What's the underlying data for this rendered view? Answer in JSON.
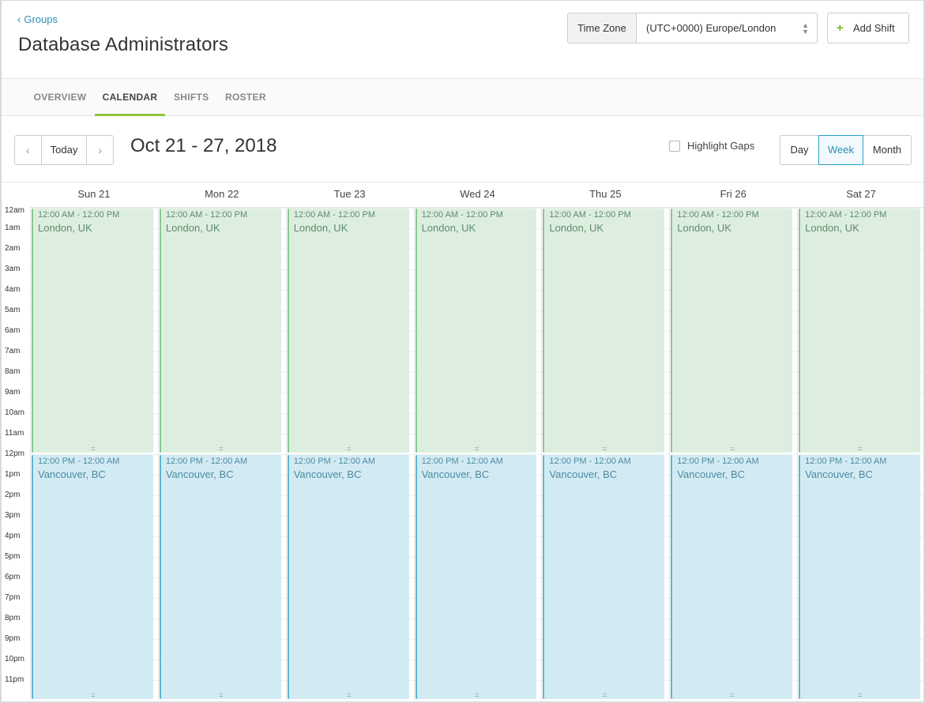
{
  "header": {
    "back_label": "Groups",
    "title": "Database Administrators",
    "timezone_label": "Time Zone",
    "timezone_value": "(UTC+0000) Europe/London",
    "add_shift_label": "Add Shift"
  },
  "tabs": [
    {
      "label": "OVERVIEW",
      "active": false
    },
    {
      "label": "CALENDAR",
      "active": true
    },
    {
      "label": "SHIFTS",
      "active": false
    },
    {
      "label": "ROSTER",
      "active": false
    }
  ],
  "toolbar": {
    "prev_glyph": "‹",
    "today_label": "Today",
    "next_glyph": "›",
    "date_range": "Oct 21 - 27, 2018",
    "highlight_gaps_label": "Highlight Gaps",
    "highlight_gaps_checked": false,
    "views": [
      "Day",
      "Week",
      "Month"
    ],
    "active_view": "Week"
  },
  "calendar": {
    "days": [
      "Sun 21",
      "Mon 22",
      "Tue 23",
      "Wed 24",
      "Thu 25",
      "Fri 26",
      "Sat 27"
    ],
    "hours": [
      "12am",
      "1am",
      "2am",
      "3am",
      "4am",
      "5am",
      "6am",
      "7am",
      "8am",
      "9am",
      "10am",
      "11am",
      "12pm",
      "1pm",
      "2pm",
      "3pm",
      "4pm",
      "5pm",
      "6pm",
      "7pm",
      "8pm",
      "9pm",
      "10pm",
      "11pm"
    ],
    "shifts": [
      {
        "time": "12:00 AM - 12:00 PM",
        "place": "London, UK",
        "type": "london",
        "start_hour": 0,
        "end_hour": 12
      },
      {
        "time": "12:00 PM - 12:00 AM",
        "place": "Vancouver, BC",
        "type": "vancouver",
        "start_hour": 12,
        "end_hour": 24
      }
    ],
    "handle_glyph": "="
  },
  "colors": {
    "accent": "#8cc63f",
    "link": "#2a8fb5",
    "london_bg": "#ddeee0",
    "vancouver_bg": "#d2ebf3"
  }
}
